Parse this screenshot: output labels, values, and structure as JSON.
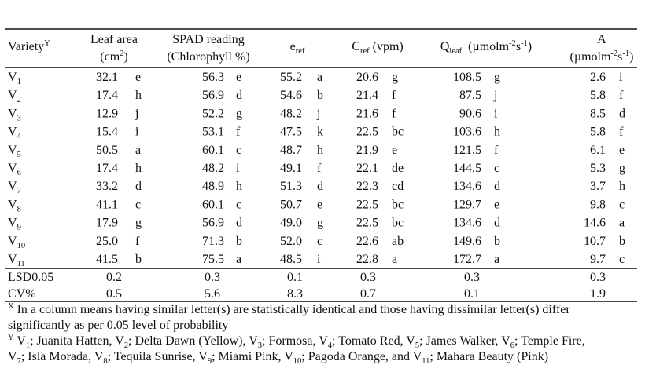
{
  "table": {
    "columns": [
      {
        "lines": [
          [
            {
              "text": "Variety"
            },
            {
              "sup": "Y"
            }
          ]
        ]
      },
      {
        "lines": [
          [
            {
              "text": "Leaf area"
            }
          ],
          [
            {
              "text": "(cm"
            },
            {
              "sup": "2"
            },
            {
              "text": ")"
            }
          ]
        ]
      },
      {
        "lines": [
          [
            {
              "text": "SPAD reading"
            }
          ],
          [
            {
              "text": "(Chlorophyll %)"
            }
          ]
        ]
      },
      {
        "lines": [
          [
            {
              "text": "e"
            },
            {
              "sub": "ref"
            }
          ]
        ]
      },
      {
        "lines": [
          [
            {
              "text": "C"
            },
            {
              "sub": "ref"
            },
            {
              "text": " (vpm)"
            }
          ]
        ]
      },
      {
        "lines": [
          [
            {
              "text": "Q"
            },
            {
              "sub": "leaf"
            },
            {
              "text": "  (µmolm"
            },
            {
              "sup": "-2"
            },
            {
              "text": "s"
            },
            {
              "sup": "-1"
            },
            {
              "text": ")"
            }
          ]
        ]
      },
      {
        "lines": [
          [
            {
              "text": "A"
            }
          ],
          [
            {
              "text": "(µmolm"
            },
            {
              "sup": "-2"
            },
            {
              "text": "s"
            },
            {
              "sup": "-1"
            },
            {
              "text": ")"
            }
          ]
        ]
      }
    ],
    "rows": [
      {
        "variety": [
          {
            "text": "V"
          },
          {
            "sub": "1"
          }
        ],
        "values": [
          [
            "32.1",
            "e"
          ],
          [
            "56.3",
            "e"
          ],
          [
            "55.2",
            "a"
          ],
          [
            "20.6",
            "g"
          ],
          [
            "108.5",
            "g"
          ],
          [
            "2.6",
            "i"
          ]
        ]
      },
      {
        "variety": [
          {
            "text": "V"
          },
          {
            "sub": "2"
          }
        ],
        "values": [
          [
            "17.4",
            "h"
          ],
          [
            "56.9",
            "d"
          ],
          [
            "54.6",
            "b"
          ],
          [
            "21.4",
            "f"
          ],
          [
            "87.5",
            "j"
          ],
          [
            "5.8",
            "f"
          ]
        ]
      },
      {
        "variety": [
          {
            "text": "V"
          },
          {
            "sub": "3"
          }
        ],
        "values": [
          [
            "12.9",
            "j"
          ],
          [
            "52.2",
            "g"
          ],
          [
            "48.2",
            "j"
          ],
          [
            "21.6",
            "f"
          ],
          [
            "90.6",
            "i"
          ],
          [
            "8.5",
            "d"
          ]
        ]
      },
      {
        "variety": [
          {
            "text": "V"
          },
          {
            "sub": "4"
          }
        ],
        "values": [
          [
            "15.4",
            "i"
          ],
          [
            "53.1",
            "f"
          ],
          [
            "47.5",
            "k"
          ],
          [
            "22.5",
            "bc"
          ],
          [
            "103.6",
            "h"
          ],
          [
            "5.8",
            "f"
          ]
        ]
      },
      {
        "variety": [
          {
            "text": "V"
          },
          {
            "sub": "5"
          }
        ],
        "values": [
          [
            "50.5",
            "a"
          ],
          [
            "60.1",
            "c"
          ],
          [
            "48.7",
            "h"
          ],
          [
            "21.9",
            "e"
          ],
          [
            "121.5",
            "f"
          ],
          [
            "6.1",
            "e"
          ]
        ]
      },
      {
        "variety": [
          {
            "text": "V"
          },
          {
            "sub": "6"
          }
        ],
        "values": [
          [
            "17.4",
            "h"
          ],
          [
            "48.2",
            "i"
          ],
          [
            "49.1",
            "f"
          ],
          [
            "22.1",
            "de"
          ],
          [
            "144.5",
            "c"
          ],
          [
            "5.3",
            "g"
          ]
        ]
      },
      {
        "variety": [
          {
            "text": "V"
          },
          {
            "sub": "7"
          }
        ],
        "values": [
          [
            "33.2",
            "d"
          ],
          [
            "48.9",
            "h"
          ],
          [
            "51.3",
            "d"
          ],
          [
            "22.3",
            "cd"
          ],
          [
            "134.6",
            "d"
          ],
          [
            "3.7",
            "h"
          ]
        ]
      },
      {
        "variety": [
          {
            "text": "V"
          },
          {
            "sub": "8"
          }
        ],
        "values": [
          [
            "41.1",
            "c"
          ],
          [
            "60.1",
            "c"
          ],
          [
            "50.7",
            "e"
          ],
          [
            "22.5",
            "bc"
          ],
          [
            "129.7",
            "e"
          ],
          [
            "9.8",
            "c"
          ]
        ]
      },
      {
        "variety": [
          {
            "text": "V"
          },
          {
            "sub": "9"
          }
        ],
        "values": [
          [
            "17.9",
            "g"
          ],
          [
            "56.9",
            "d"
          ],
          [
            "49.0",
            "g"
          ],
          [
            "22.5",
            "bc"
          ],
          [
            "134.6",
            "d"
          ],
          [
            "14.6",
            "a"
          ]
        ]
      },
      {
        "variety": [
          {
            "text": "V"
          },
          {
            "sub": "10"
          }
        ],
        "values": [
          [
            "25.0",
            "f"
          ],
          [
            "71.3",
            "b"
          ],
          [
            "52.0",
            "c"
          ],
          [
            "22.6",
            "ab"
          ],
          [
            "149.6",
            "b"
          ],
          [
            "10.7",
            "b"
          ]
        ]
      },
      {
        "variety": [
          {
            "text": "V"
          },
          {
            "sub": "11"
          }
        ],
        "values": [
          [
            "41.5",
            "b"
          ],
          [
            "75.5",
            "a"
          ],
          [
            "48.5",
            "i"
          ],
          [
            "22.8",
            "a"
          ],
          [
            "172.7",
            "a"
          ],
          [
            "9.7",
            "c"
          ]
        ]
      }
    ],
    "summary": [
      {
        "label": "LSD0.05",
        "values": [
          "0.2",
          "0.3",
          "0.1",
          "0.3",
          "0.3",
          "0.3"
        ]
      },
      {
        "label": "CV%",
        "values": [
          "0.5",
          "5.6",
          "8.3",
          "0.7",
          "0.1",
          "1.9"
        ]
      }
    ]
  },
  "notes": [
    [
      {
        "sup": "X"
      },
      {
        "text": " In a column means having similar letter(s) are statistically identical and those having dissimilar letter(s) differ"
      }
    ],
    [
      {
        "text": "significantly as per 0.05 level of probability"
      }
    ],
    [
      {
        "sup": "Y"
      },
      {
        "text": " V"
      },
      {
        "sub": "1"
      },
      {
        "text": "; Juanita Hatten, V"
      },
      {
        "sub": "2"
      },
      {
        "text": "; Delta Dawn (Yellow), V"
      },
      {
        "sub": "3"
      },
      {
        "text": "; Formosa, V"
      },
      {
        "sub": "4"
      },
      {
        "text": "; Tomato Red, V"
      },
      {
        "sub": "5"
      },
      {
        "text": "; James Walker, V"
      },
      {
        "sub": "6"
      },
      {
        "text": "; Temple Fire,"
      }
    ],
    [
      {
        "text": "V"
      },
      {
        "sub": "7"
      },
      {
        "text": "; Isla Morada, V"
      },
      {
        "sub": "8"
      },
      {
        "text": "; Tequila Sunrise, V"
      },
      {
        "sub": "9"
      },
      {
        "text": "; Miami Pink, V"
      },
      {
        "sub": "10"
      },
      {
        "text": "; Pagoda Orange, and V"
      },
      {
        "sub": "11"
      },
      {
        "text": "; Mahara Beauty (Pink)"
      }
    ]
  ]
}
